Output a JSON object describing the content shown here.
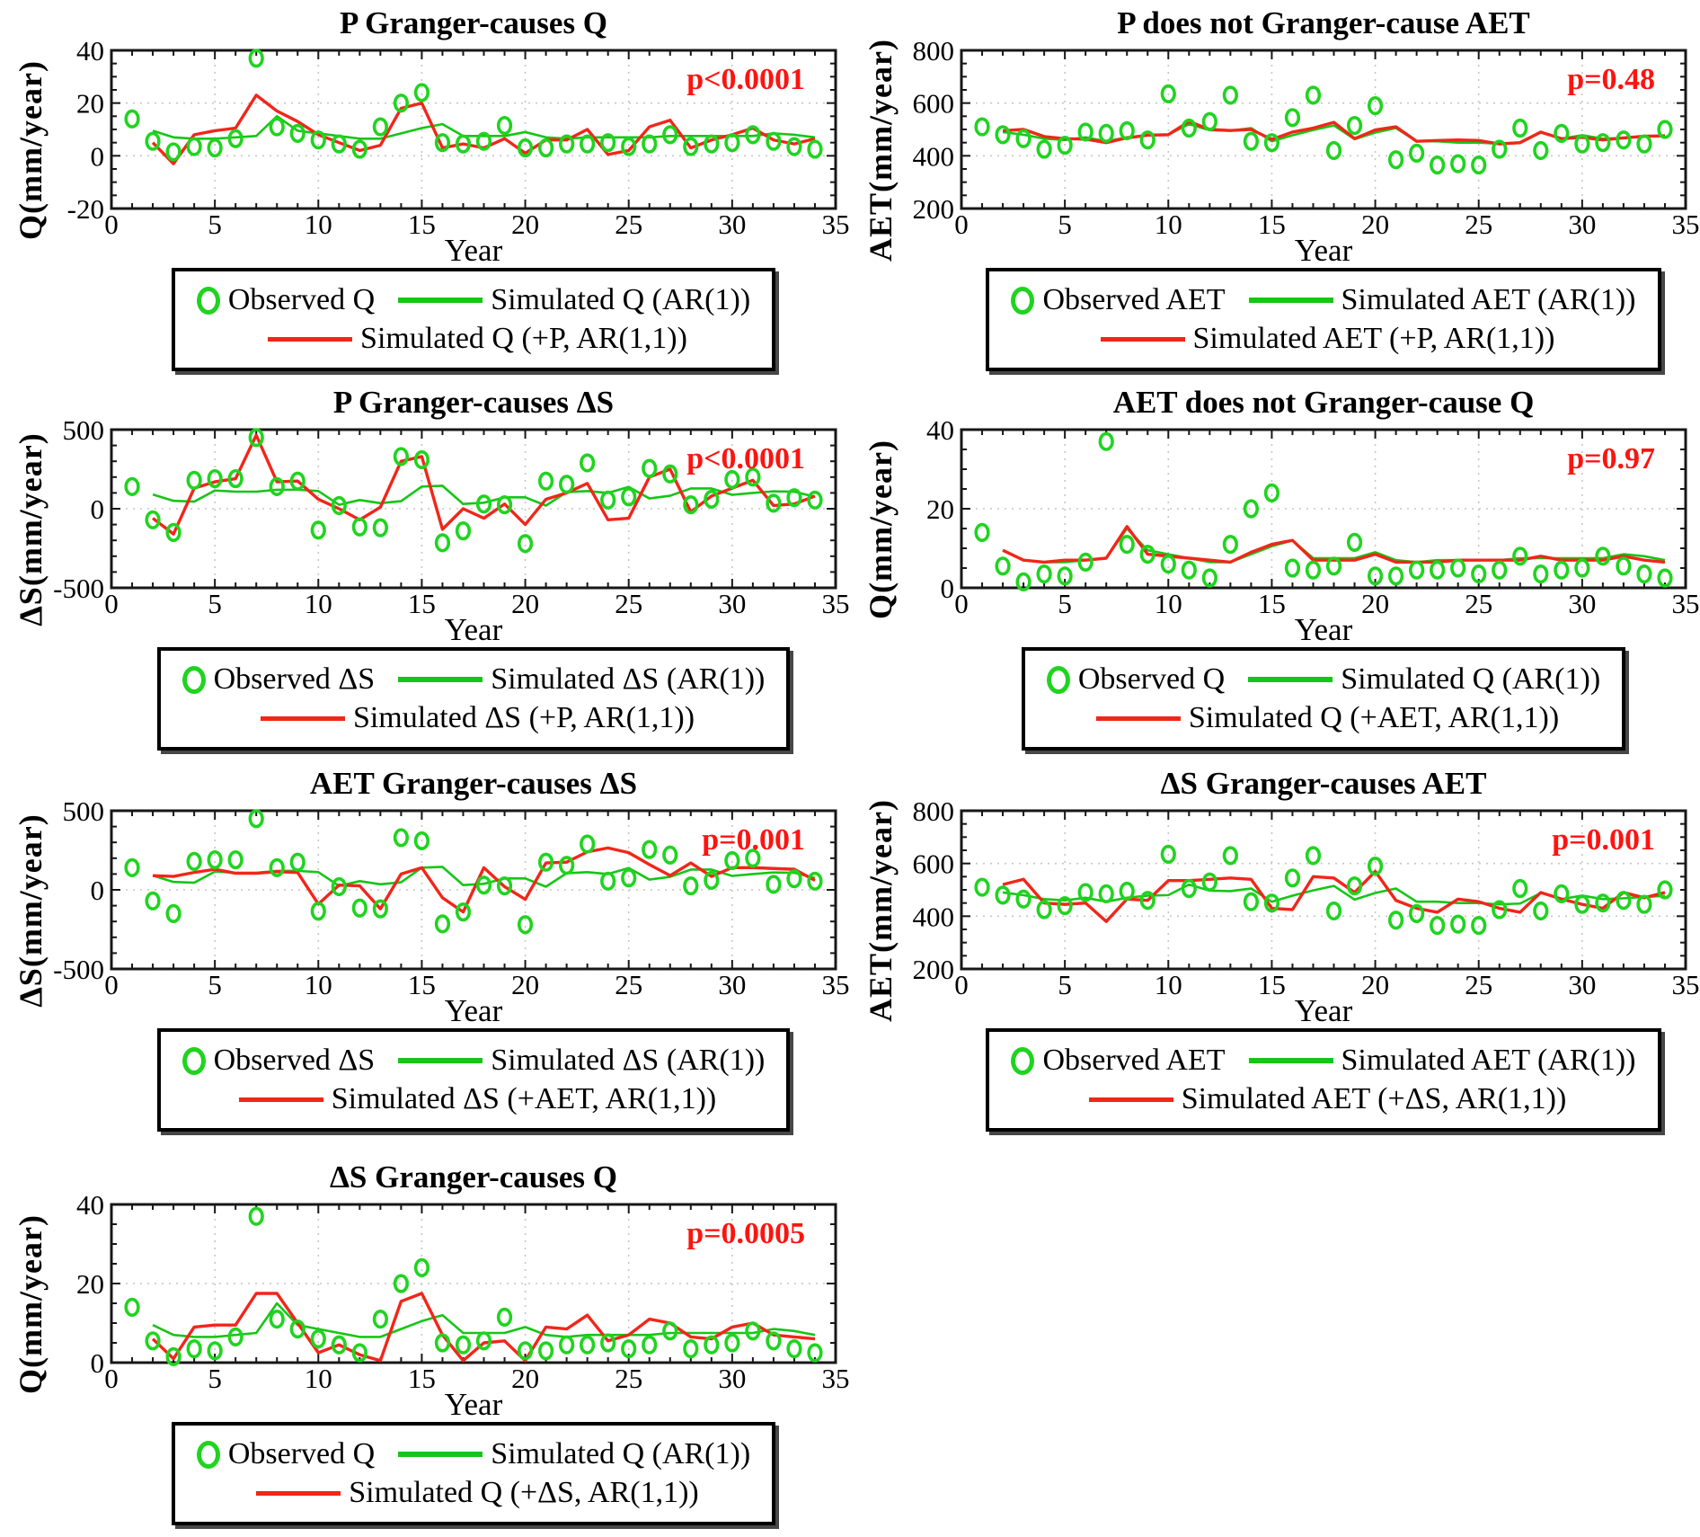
{
  "colors": {
    "observed_green": "#1fd41f",
    "simulated_green": "#17c517",
    "cause_red": "#f1261a",
    "pvalue_red": "#fd1410",
    "grid_gray": "#c6c6c6",
    "axis_black": "#171717"
  },
  "xaxis": {
    "label": "Year",
    "min": 0,
    "max": 35,
    "tick_labels": [
      0,
      5,
      10,
      15,
      20,
      25,
      30,
      35
    ],
    "minor_step": 1,
    "grid_lines": [
      5,
      10,
      15,
      20,
      25,
      30
    ]
  },
  "observed_years": [
    1,
    2,
    3,
    4,
    5,
    6,
    7,
    8,
    9,
    10,
    11,
    12,
    13,
    14,
    15,
    16,
    17,
    18,
    19,
    20,
    21,
    22,
    23,
    24,
    25,
    26,
    27,
    28,
    29,
    30,
    31,
    32,
    33,
    34
  ],
  "simulated_years": [
    2,
    3,
    4,
    5,
    6,
    7,
    8,
    9,
    10,
    11,
    12,
    13,
    14,
    15,
    16,
    17,
    18,
    19,
    20,
    21,
    22,
    23,
    24,
    25,
    26,
    27,
    28,
    29,
    30,
    31,
    32,
    33,
    34
  ],
  "chart_data": [
    {
      "type": "line+scatter",
      "col": 0,
      "row": 0,
      "title": "P Granger-causes Q",
      "p_value": "p<0.0001",
      "xlabel": "Year",
      "ylabel": "Q(mm/year)",
      "xlim": [
        0,
        35
      ],
      "ylim": [
        -20,
        40
      ],
      "yticks": [
        40,
        20,
        0,
        -20
      ],
      "y_minor_step": 5,
      "grid": true,
      "legend_position": "below",
      "series": [
        {
          "name": "Observed Q",
          "style": "scatter-ring",
          "color": "observed_green",
          "values": [
            14,
            5.5,
            1.5,
            3.5,
            3,
            6.5,
            37,
            11,
            8.5,
            6,
            4.5,
            2.5,
            11,
            20,
            24,
            5,
            4.5,
            5.5,
            11.5,
            3,
            3,
            4.5,
            4.5,
            5,
            3.5,
            4.5,
            8,
            3.5,
            4.5,
            5,
            8,
            5.5,
            3.5,
            2.5
          ]
        },
        {
          "name": "Simulated Q (AR(1))",
          "style": "line",
          "color": "simulated_green",
          "values": [
            9.5,
            7,
            6.5,
            6.5,
            7,
            7.5,
            15,
            9.5,
            8.5,
            7.5,
            6.5,
            6.5,
            8.5,
            10.5,
            12,
            7.5,
            7.5,
            7.5,
            9,
            7,
            6.5,
            7,
            7,
            7,
            7,
            7.5,
            7.5,
            7.5,
            7.5,
            7.5,
            8.5,
            8,
            7
          ]
        },
        {
          "name": "Simulated Q (+P, AR(1,1))",
          "style": "line",
          "color": "cause_red",
          "values": [
            5,
            -3,
            8,
            9.5,
            10.5,
            23,
            17,
            13,
            8,
            5,
            2,
            4,
            18,
            20,
            3,
            4.5,
            3,
            6.5,
            1,
            6,
            6,
            10,
            0.5,
            2,
            11,
            13.5,
            3,
            6,
            8,
            10.5,
            6,
            4.5,
            6.5
          ]
        }
      ]
    },
    {
      "type": "line+scatter",
      "col": 1,
      "row": 0,
      "title": "P does not Granger-cause AET",
      "p_value": "p=0.48",
      "xlabel": "Year",
      "ylabel": "AET(mm/year)",
      "xlim": [
        0,
        35
      ],
      "ylim": [
        200,
        800
      ],
      "yticks": [
        800,
        600,
        400,
        200
      ],
      "y_minor_step": 50,
      "grid": true,
      "legend_position": "below",
      "series": [
        {
          "name": "Observed AET",
          "style": "scatter-ring",
          "color": "observed_green",
          "values": [
            510,
            480,
            465,
            425,
            440,
            490,
            485,
            495,
            460,
            635,
            505,
            530,
            630,
            455,
            450,
            545,
            630,
            420,
            515,
            590,
            385,
            410,
            365,
            370,
            365,
            425,
            505,
            420,
            485,
            445,
            450,
            460,
            445,
            500
          ]
        },
        {
          "name": "Simulated AET (AR(1))",
          "style": "line",
          "color": "simulated_green",
          "values": [
            490,
            480,
            465,
            460,
            470,
            455,
            470,
            478,
            480,
            520,
            497,
            495,
            505,
            455,
            478,
            498,
            515,
            463,
            488,
            505,
            455,
            455,
            450,
            450,
            445,
            448,
            488,
            465,
            478,
            465,
            468,
            473,
            477
          ]
        },
        {
          "name": "Simulated AET (+P, AR(1,1))",
          "style": "line",
          "color": "cause_red",
          "values": [
            495,
            500,
            473,
            465,
            463,
            450,
            468,
            478,
            480,
            530,
            500,
            496,
            500,
            462,
            490,
            505,
            527,
            465,
            498,
            510,
            455,
            458,
            460,
            458,
            445,
            450,
            490,
            465,
            470,
            460,
            468,
            474,
            476
          ]
        }
      ]
    },
    {
      "type": "line+scatter",
      "col": 0,
      "row": 1,
      "title": "P Granger-causes ΔS",
      "p_value": "p<0.0001",
      "xlabel": "Year",
      "ylabel": "ΔS(mm/year)",
      "xlim": [
        0,
        35
      ],
      "ylim": [
        -500,
        500
      ],
      "yticks": [
        500,
        0,
        -500
      ],
      "y_minor_step": 100,
      "grid": true,
      "legend_position": "below",
      "series": [
        {
          "name": "Observed ΔS",
          "style": "scatter-ring",
          "color": "observed_green",
          "values": [
            140,
            -70,
            -150,
            180,
            190,
            190,
            450,
            140,
            175,
            -135,
            20,
            -115,
            -120,
            330,
            310,
            -215,
            -140,
            30,
            25,
            -220,
            175,
            155,
            290,
            55,
            75,
            255,
            220,
            25,
            60,
            185,
            200,
            35,
            70,
            55
          ]
        },
        {
          "name": "Simulated ΔS (AR(1))",
          "style": "line",
          "color": "simulated_green",
          "values": [
            90,
            50,
            45,
            115,
            108,
            108,
            120,
            120,
            112,
            25,
            55,
            35,
            48,
            140,
            145,
            30,
            38,
            72,
            72,
            20,
            105,
            112,
            100,
            138,
            65,
            82,
            128,
            128,
            88,
            100,
            110,
            108,
            75
          ]
        },
        {
          "name": "Simulated ΔS (+P, AR(1,1))",
          "style": "line",
          "color": "cause_red",
          "values": [
            -60,
            -160,
            130,
            170,
            190,
            465,
            170,
            175,
            60,
            0,
            -70,
            10,
            300,
            330,
            -130,
            0,
            -60,
            30,
            -100,
            60,
            100,
            160,
            -70,
            -60,
            200,
            250,
            -20,
            80,
            130,
            180,
            20,
            30,
            80
          ]
        }
      ]
    },
    {
      "type": "line+scatter",
      "col": 1,
      "row": 1,
      "title": "AET does not Granger-cause Q",
      "p_value": "p=0.97",
      "xlabel": "Year",
      "ylabel": "Q(mm/year)",
      "xlim": [
        0,
        35
      ],
      "ylim": [
        0,
        40
      ],
      "yticks": [
        40,
        20,
        0
      ],
      "y_minor_step": 5,
      "grid": true,
      "legend_position": "below",
      "series": [
        {
          "name": "Observed Q",
          "style": "scatter-ring",
          "color": "observed_green",
          "values": [
            14,
            5.5,
            1.5,
            3.5,
            3,
            6.5,
            37,
            11,
            8.5,
            6,
            4.5,
            2.5,
            11,
            20,
            24,
            5,
            4.5,
            5.5,
            11.5,
            3,
            3,
            4.5,
            4.5,
            5,
            3.5,
            4.5,
            8,
            3.5,
            4.5,
            5,
            8,
            5.5,
            3.5,
            2.5
          ]
        },
        {
          "name": "Simulated Q (AR(1))",
          "style": "line",
          "color": "simulated_green",
          "values": [
            9.5,
            7,
            6.5,
            6.5,
            7,
            7.5,
            15,
            9.5,
            8.5,
            7.5,
            6.5,
            6.5,
            8.5,
            10.5,
            12,
            7.5,
            7.5,
            7.5,
            9,
            7,
            6.5,
            7,
            7,
            7,
            7,
            7.5,
            7.5,
            7.5,
            7.5,
            7.5,
            8.5,
            8,
            7
          ]
        },
        {
          "name": "Simulated Q (+AET, AR(1,1))",
          "style": "line",
          "color": "cause_red",
          "values": [
            9.5,
            7,
            6.5,
            7,
            7,
            7.5,
            15.5,
            8.5,
            8,
            7.5,
            7,
            6.5,
            9,
            11,
            12,
            7,
            7,
            7,
            8.5,
            6.5,
            6.5,
            6.5,
            7,
            7,
            7,
            7,
            8,
            7,
            7,
            7,
            8,
            7,
            6.5
          ]
        }
      ]
    },
    {
      "type": "line+scatter",
      "col": 0,
      "row": 2,
      "title": "AET Granger-causes ΔS",
      "p_value": "p=0.001",
      "xlabel": "Year",
      "ylabel": "ΔS(mm/year)",
      "xlim": [
        0,
        35
      ],
      "ylim": [
        -500,
        500
      ],
      "yticks": [
        500,
        0,
        -500
      ],
      "y_minor_step": 100,
      "grid": true,
      "legend_position": "below",
      "series": [
        {
          "name": "Observed ΔS",
          "style": "scatter-ring",
          "color": "observed_green",
          "values": [
            140,
            -70,
            -150,
            180,
            190,
            190,
            450,
            140,
            175,
            -135,
            20,
            -115,
            -120,
            330,
            310,
            -215,
            -140,
            30,
            25,
            -220,
            175,
            155,
            290,
            55,
            75,
            255,
            220,
            25,
            60,
            185,
            200,
            35,
            70,
            55
          ]
        },
        {
          "name": "Simulated ΔS (AR(1))",
          "style": "line",
          "color": "simulated_green",
          "values": [
            90,
            50,
            45,
            115,
            108,
            108,
            120,
            120,
            112,
            25,
            55,
            35,
            48,
            140,
            145,
            30,
            38,
            72,
            72,
            20,
            105,
            112,
            100,
            138,
            65,
            82,
            128,
            128,
            88,
            100,
            110,
            108,
            75
          ]
        },
        {
          "name": "Simulated ΔS (+AET, AR(1,1))",
          "style": "line",
          "color": "cause_red",
          "values": [
            90,
            85,
            110,
            130,
            105,
            105,
            115,
            110,
            -90,
            30,
            25,
            -120,
            100,
            140,
            -50,
            -140,
            140,
            20,
            -60,
            170,
            175,
            240,
            265,
            235,
            160,
            90,
            170,
            85,
            140,
            140,
            135,
            130,
            60
          ]
        }
      ]
    },
    {
      "type": "line+scatter",
      "col": 1,
      "row": 2,
      "title": "ΔS Granger-causes AET",
      "p_value": "p=0.001",
      "xlabel": "Year",
      "ylabel": "AET(mm/year)",
      "xlim": [
        0,
        35
      ],
      "ylim": [
        200,
        800
      ],
      "yticks": [
        800,
        600,
        400,
        200
      ],
      "y_minor_step": 50,
      "grid": true,
      "legend_position": "below",
      "series": [
        {
          "name": "Observed AET",
          "style": "scatter-ring",
          "color": "observed_green",
          "values": [
            510,
            480,
            465,
            425,
            440,
            490,
            485,
            495,
            460,
            635,
            505,
            530,
            630,
            455,
            450,
            545,
            630,
            420,
            515,
            590,
            385,
            410,
            365,
            370,
            365,
            425,
            505,
            420,
            485,
            445,
            450,
            460,
            445,
            500
          ]
        },
        {
          "name": "Simulated AET (AR(1))",
          "style": "line",
          "color": "simulated_green",
          "values": [
            490,
            480,
            465,
            460,
            470,
            455,
            470,
            478,
            480,
            520,
            497,
            495,
            505,
            455,
            478,
            498,
            515,
            463,
            488,
            505,
            455,
            455,
            450,
            450,
            445,
            448,
            488,
            465,
            478,
            465,
            468,
            473,
            477
          ]
        },
        {
          "name": "Simulated AET (+ΔS, AR(1,1))",
          "style": "line",
          "color": "cause_red",
          "values": [
            520,
            540,
            450,
            445,
            450,
            380,
            465,
            460,
            535,
            535,
            540,
            545,
            540,
            430,
            425,
            550,
            545,
            490,
            570,
            460,
            430,
            415,
            465,
            455,
            430,
            415,
            490,
            465,
            445,
            430,
            490,
            470,
            490
          ]
        }
      ]
    },
    {
      "type": "line+scatter",
      "col": 0,
      "row": 3,
      "title": "ΔS Granger-causes Q",
      "p_value": "p=0.0005",
      "xlabel": "Year",
      "ylabel": "Q(mm/year)",
      "xlim": [
        0,
        35
      ],
      "ylim": [
        0,
        40
      ],
      "yticks": [
        40,
        20,
        0
      ],
      "y_minor_step": 5,
      "grid": true,
      "legend_position": "below",
      "series": [
        {
          "name": "Observed Q",
          "style": "scatter-ring",
          "color": "observed_green",
          "values": [
            14,
            5.5,
            1.5,
            3.5,
            3,
            6.5,
            37,
            11,
            8.5,
            6,
            4.5,
            2.5,
            11,
            20,
            24,
            5,
            4.5,
            5.5,
            11.5,
            3,
            3,
            4.5,
            4.5,
            5,
            3.5,
            4.5,
            8,
            3.5,
            4.5,
            5,
            8,
            5.5,
            3.5,
            2.5
          ]
        },
        {
          "name": "Simulated Q (AR(1))",
          "style": "line",
          "color": "simulated_green",
          "values": [
            9.5,
            7,
            6.5,
            6.5,
            7,
            7.5,
            15,
            9.5,
            8.5,
            7.5,
            6.5,
            6.5,
            8.5,
            10.5,
            12,
            7.5,
            7.5,
            7.5,
            9,
            7,
            6.5,
            7,
            7,
            7,
            7,
            7.5,
            7.5,
            7.5,
            7.5,
            7.5,
            8.5,
            8,
            7
          ]
        },
        {
          "name": "Simulated Q (+ΔS, AR(1,1))",
          "style": "line",
          "color": "cause_red",
          "values": [
            6,
            1,
            9,
            9.5,
            9.5,
            17.5,
            17.5,
            10,
            2.5,
            4.5,
            2,
            0.5,
            15.5,
            17.5,
            7,
            0.5,
            5,
            5.5,
            0.5,
            9,
            8.5,
            12,
            5.5,
            7,
            11,
            10,
            6.5,
            6,
            9,
            10,
            7,
            6.5,
            6
          ]
        }
      ]
    }
  ]
}
